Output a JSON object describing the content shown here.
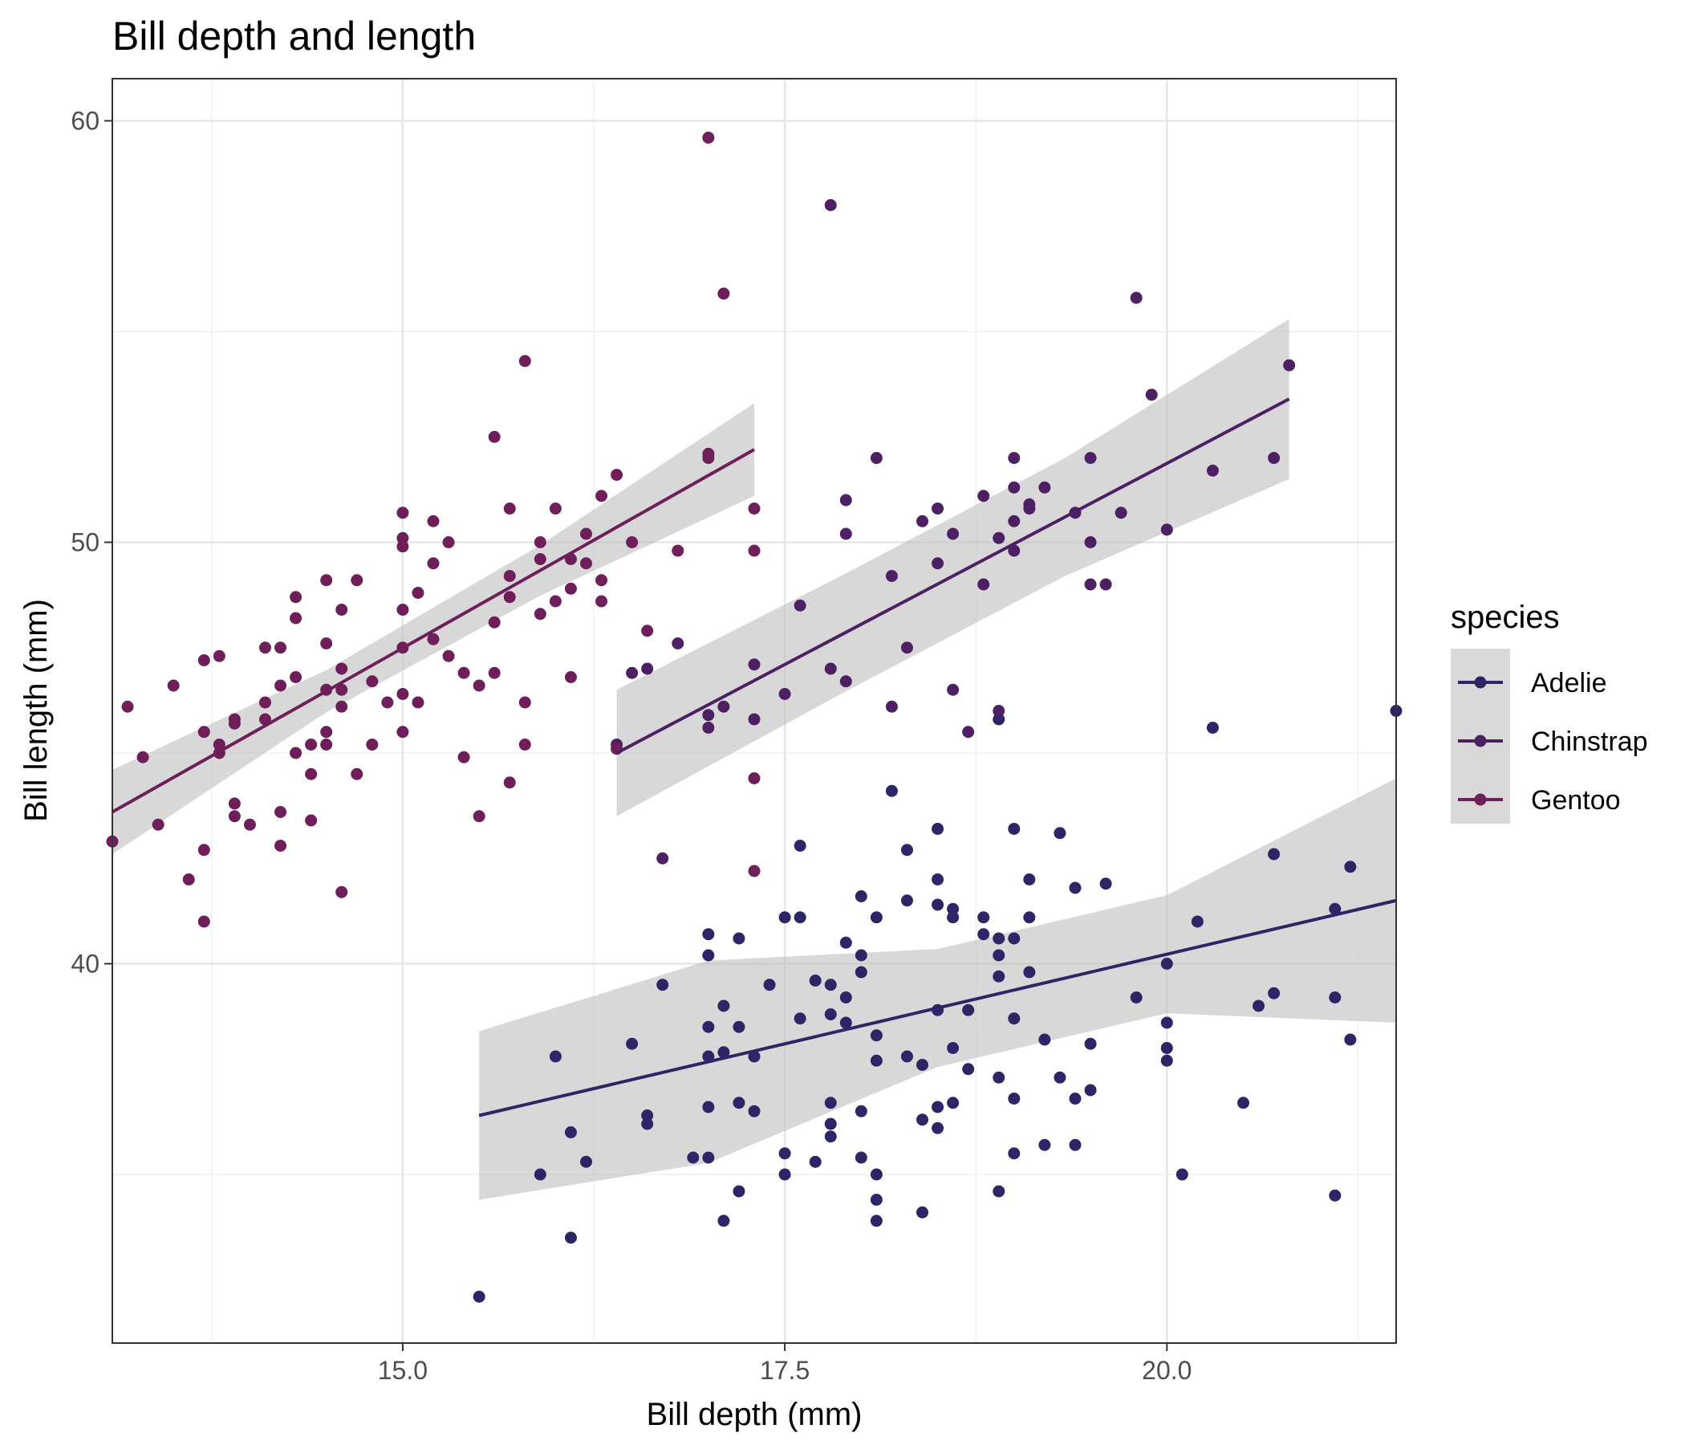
{
  "chart_data": {
    "type": "scatter",
    "title": "Bill depth and length",
    "xlabel": "Bill depth (mm)",
    "ylabel": "Bill length (mm)",
    "xlim": [
      13.1,
      21.5
    ],
    "ylim": [
      31,
      61
    ],
    "x_ticks": [
      15.0,
      17.5,
      20.0
    ],
    "x_tick_labels": [
      "15.0",
      "17.5",
      "20.0"
    ],
    "y_ticks": [
      40,
      50,
      60
    ],
    "y_tick_labels": [
      "40",
      "50",
      "60"
    ],
    "grid": true,
    "legend": {
      "title": "species",
      "position": "right"
    },
    "series": [
      {
        "name": "Adelie",
        "color": "#2c2566",
        "trend": {
          "x": [
            15.5,
            21.5
          ],
          "y": [
            36.4,
            41.5
          ],
          "band": [
            2.0,
            2.4,
            1.4,
            1.4,
            2.9
          ]
        },
        "x": [
          15.5,
          15.9,
          16.0,
          16.1,
          16.1,
          16.2,
          16.5,
          16.6,
          16.6,
          16.7,
          16.9,
          17.0,
          17.0,
          17.0,
          17.0,
          17.0,
          17.0,
          17.1,
          17.1,
          17.1,
          17.2,
          17.2,
          17.2,
          17.2,
          17.3,
          17.3,
          17.4,
          17.5,
          17.5,
          17.5,
          17.6,
          17.6,
          17.6,
          17.7,
          17.7,
          17.8,
          17.8,
          17.8,
          17.8,
          17.8,
          17.9,
          17.9,
          17.9,
          18.0,
          18.0,
          18.0,
          18.0,
          18.0,
          18.1,
          18.1,
          18.1,
          18.1,
          18.1,
          18.1,
          18.2,
          18.3,
          18.3,
          18.3,
          18.4,
          18.4,
          18.4,
          18.5,
          18.5,
          18.5,
          18.5,
          18.5,
          18.5,
          18.6,
          18.6,
          18.6,
          18.6,
          18.7,
          18.7,
          18.8,
          18.8,
          18.9,
          18.9,
          18.9,
          18.9,
          18.9,
          18.9,
          19.0,
          19.0,
          19.0,
          19.0,
          19.0,
          19.1,
          19.1,
          19.1,
          19.2,
          19.2,
          19.3,
          19.3,
          19.4,
          19.4,
          19.4,
          19.5,
          19.5,
          19.6,
          19.8,
          20.0,
          20.0,
          20.0,
          20.0,
          20.1,
          20.2,
          20.3,
          20.5,
          20.6,
          20.7,
          20.7,
          21.1,
          21.1,
          21.1,
          21.2,
          21.2,
          21.5
        ],
        "y": [
          32.1,
          35.0,
          37.8,
          33.5,
          36.0,
          35.3,
          38.1,
          36.4,
          36.2,
          39.5,
          35.4,
          38.5,
          37.8,
          40.2,
          40.7,
          36.6,
          35.4,
          37.9,
          33.9,
          39.0,
          34.6,
          38.5,
          36.7,
          40.6,
          36.5,
          37.8,
          39.5,
          41.1,
          35.5,
          35.0,
          38.7,
          41.1,
          42.8,
          39.6,
          35.3,
          39.5,
          38.8,
          36.7,
          35.9,
          36.2,
          40.5,
          39.2,
          38.6,
          39.8,
          36.5,
          40.2,
          35.4,
          41.6,
          37.7,
          38.3,
          41.1,
          35.0,
          34.4,
          33.9,
          44.1,
          37.8,
          41.5,
          42.7,
          37.6,
          36.3,
          34.1,
          38.9,
          36.6,
          36.1,
          43.2,
          42.0,
          41.4,
          38.0,
          36.7,
          41.1,
          41.3,
          38.9,
          37.5,
          40.7,
          41.1,
          40.6,
          34.6,
          39.7,
          40.2,
          45.8,
          37.3,
          43.2,
          38.7,
          36.8,
          35.5,
          40.6,
          39.8,
          42.0,
          41.1,
          38.2,
          35.7,
          43.1,
          37.3,
          36.8,
          35.7,
          41.8,
          38.1,
          37.0,
          41.9,
          39.2,
          37.7,
          38.0,
          38.6,
          40.0,
          35.0,
          41.0,
          45.6,
          36.7,
          39.0,
          42.6,
          39.3,
          34.5,
          39.2,
          41.3,
          42.3,
          38.2,
          46.0
        ]
      },
      {
        "name": "Chinstrap",
        "color": "#4d1f63",
        "trend": {
          "x": [
            16.4,
            20.8
          ],
          "y": [
            45.0,
            53.4
          ],
          "band": [
            1.5,
            1.4,
            1.4,
            1.9
          ]
        },
        "x": [
          16.4,
          16.5,
          16.6,
          16.7,
          16.8,
          17.0,
          17.0,
          17.1,
          17.3,
          17.3,
          17.5,
          17.6,
          17.8,
          17.8,
          17.9,
          17.9,
          17.9,
          18.1,
          18.2,
          18.2,
          18.3,
          18.4,
          18.5,
          18.5,
          18.6,
          18.6,
          18.7,
          18.8,
          18.8,
          18.9,
          18.9,
          19.0,
          19.0,
          19.0,
          19.0,
          19.1,
          19.1,
          19.2,
          19.4,
          19.5,
          19.5,
          19.5,
          19.6,
          19.7,
          19.8,
          19.9,
          20.0,
          20.3,
          20.7,
          20.8
        ],
        "y": [
          45.2,
          46.9,
          47.0,
          42.5,
          47.6,
          45.9,
          45.6,
          46.1,
          45.8,
          47.1,
          46.4,
          48.5,
          47.0,
          58.0,
          46.7,
          51.0,
          50.2,
          52.0,
          49.2,
          46.1,
          47.5,
          50.5,
          50.8,
          49.5,
          46.5,
          50.2,
          45.5,
          49.0,
          51.1,
          50.1,
          46.0,
          51.3,
          49.8,
          52.0,
          50.5,
          50.9,
          50.8,
          51.3,
          50.7,
          49.0,
          52.0,
          50.0,
          49.0,
          50.7,
          55.8,
          53.5,
          50.3,
          51.7,
          52.0,
          54.2
        ]
      },
      {
        "name": "Gentoo",
        "color": "#6e1f5a",
        "trend": {
          "x": [
            13.1,
            17.3
          ],
          "y": [
            43.6,
            52.2
          ],
          "band": [
            1.0,
            0.5,
            0.6,
            1.1
          ]
        },
        "x": [
          13.1,
          13.2,
          13.3,
          13.4,
          13.5,
          13.6,
          13.7,
          13.7,
          13.7,
          13.7,
          13.8,
          13.8,
          13.8,
          13.9,
          13.9,
          13.9,
          13.9,
          14.0,
          14.1,
          14.1,
          14.1,
          14.2,
          14.2,
          14.2,
          14.2,
          14.3,
          14.3,
          14.3,
          14.3,
          14.4,
          14.4,
          14.4,
          14.5,
          14.5,
          14.5,
          14.5,
          14.5,
          14.6,
          14.6,
          14.6,
          14.6,
          14.6,
          14.7,
          14.7,
          14.8,
          14.8,
          14.9,
          15.0,
          15.0,
          15.0,
          15.0,
          15.0,
          15.0,
          15.0,
          15.1,
          15.1,
          15.2,
          15.2,
          15.2,
          15.3,
          15.3,
          15.4,
          15.4,
          15.5,
          15.5,
          15.6,
          15.6,
          15.6,
          15.7,
          15.7,
          15.7,
          15.7,
          15.8,
          15.8,
          15.8,
          15.9,
          15.9,
          15.9,
          16.0,
          16.0,
          16.1,
          16.1,
          16.1,
          16.2,
          16.2,
          16.3,
          16.3,
          16.3,
          16.4,
          16.4,
          16.5,
          16.6,
          16.8,
          17.0,
          17.0,
          17.0,
          17.1,
          17.3,
          17.3,
          17.3,
          17.3
        ],
        "y": [
          42.9,
          46.1,
          44.9,
          43.3,
          46.6,
          42.0,
          42.7,
          41.0,
          45.5,
          47.2,
          47.3,
          45.2,
          45.0,
          43.8,
          43.5,
          45.7,
          45.8,
          43.3,
          47.5,
          46.2,
          45.8,
          42.8,
          43.6,
          46.6,
          47.5,
          48.2,
          48.7,
          46.8,
          45.0,
          45.2,
          43.4,
          44.5,
          46.5,
          49.1,
          47.6,
          45.5,
          45.2,
          48.4,
          46.1,
          47.0,
          46.5,
          41.7,
          44.5,
          49.1,
          45.2,
          46.7,
          46.2,
          50.7,
          48.4,
          47.5,
          46.4,
          49.9,
          50.1,
          45.5,
          48.8,
          46.2,
          47.7,
          50.5,
          49.5,
          47.3,
          50.0,
          46.9,
          44.9,
          46.6,
          43.5,
          52.5,
          48.1,
          46.9,
          48.7,
          49.2,
          44.3,
          50.8,
          45.2,
          46.2,
          54.3,
          48.3,
          50.0,
          49.6,
          50.8,
          48.6,
          46.8,
          49.6,
          48.9,
          49.5,
          50.2,
          48.6,
          51.1,
          49.1,
          51.6,
          45.1,
          50.0,
          47.9,
          49.8,
          52.0,
          52.1,
          59.6,
          55.9,
          44.4,
          42.2,
          49.8,
          50.8
        ]
      }
    ]
  }
}
